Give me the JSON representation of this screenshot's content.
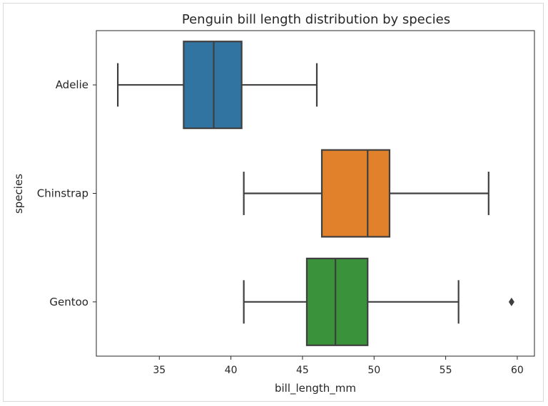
{
  "chart_data": {
    "type": "box",
    "title": "Penguin bill length distribution by species",
    "xlabel": "bill_length_mm",
    "ylabel": "species",
    "orientation": "horizontal",
    "xlim": [
      30.6,
      61.2
    ],
    "xticks": [
      35,
      40,
      45,
      50,
      55,
      60
    ],
    "grid": false,
    "categories": [
      "Adelie",
      "Chinstrap",
      "Gentoo"
    ],
    "boxes": [
      {
        "category": "Adelie",
        "color": "#3274A1",
        "whisker_low": 32.1,
        "q1": 36.7,
        "median": 38.8,
        "q3": 40.75,
        "whisker_high": 46.0,
        "outliers": []
      },
      {
        "category": "Chinstrap",
        "color": "#E1812C",
        "whisker_low": 40.9,
        "q1": 46.35,
        "median": 49.55,
        "q3": 51.08,
        "whisker_high": 58.0,
        "outliers": []
      },
      {
        "category": "Gentoo",
        "color": "#3A923A",
        "whisker_low": 40.9,
        "q1": 45.3,
        "median": 47.3,
        "q3": 49.55,
        "whisker_high": 55.9,
        "outliers": [
          59.6
        ]
      }
    ]
  }
}
